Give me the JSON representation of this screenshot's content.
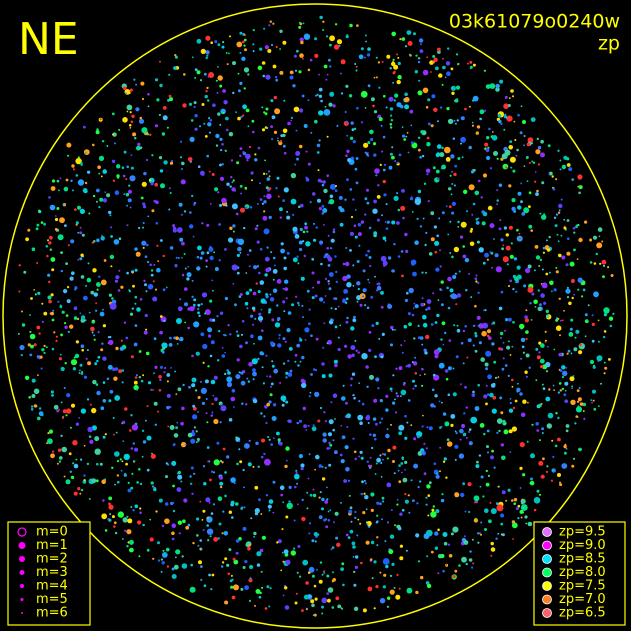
{
  "header": {
    "direction": "NE",
    "frame_id": "03k61079o0240w",
    "mode": "zp"
  },
  "magnitude_legend": [
    "m=0",
    "m=1",
    "m=2",
    "m=3",
    "m=4",
    "m=5",
    "m=6"
  ],
  "zp_legend": [
    {
      "label": "zp=9.5",
      "color": "#e070ff"
    },
    {
      "label": "zp=9.0",
      "color": "#ff00ff"
    },
    {
      "label": "zp=8.5",
      "color": "#00e0ff"
    },
    {
      "label": "zp=8.0",
      "color": "#00ff60"
    },
    {
      "label": "zp=7.5",
      "color": "#ffff00"
    },
    {
      "label": "zp=7.0",
      "color": "#ff8020"
    },
    {
      "label": "zp=6.5",
      "color": "#ff6070"
    }
  ]
}
